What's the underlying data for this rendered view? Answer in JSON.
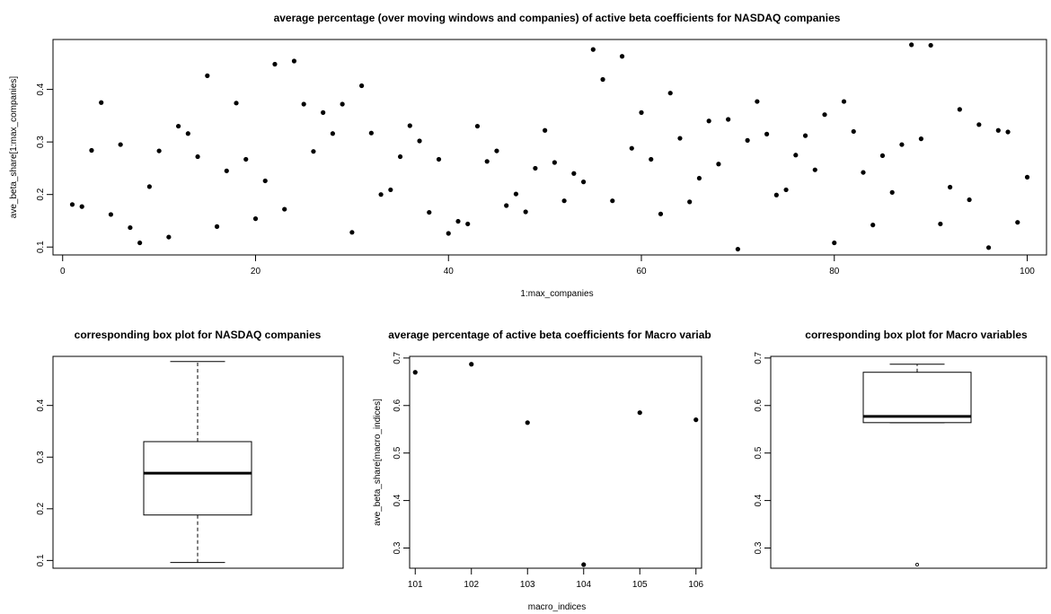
{
  "chart_data": [
    {
      "id": "nasdaq-scatter",
      "type": "scatter",
      "title": "average percentage (over moving windows and companies) of active beta coefficients for NASDAQ companies",
      "xlabel": "1:max_companies",
      "ylabel": "ave_beta_share[1:max_companies]",
      "xlim": [
        -1,
        102
      ],
      "ylim": [
        0.085,
        0.495
      ],
      "xticks": [
        0,
        20,
        40,
        60,
        80,
        100
      ],
      "yticks": [
        0.1,
        0.2,
        0.3,
        0.4
      ],
      "x": [
        1,
        2,
        3,
        4,
        5,
        6,
        7,
        8,
        9,
        10,
        11,
        12,
        13,
        14,
        15,
        16,
        17,
        18,
        19,
        20,
        21,
        22,
        23,
        24,
        25,
        26,
        27,
        28,
        29,
        30,
        31,
        32,
        33,
        34,
        35,
        36,
        37,
        38,
        39,
        40,
        41,
        42,
        43,
        44,
        45,
        46,
        47,
        48,
        49,
        50,
        51,
        52,
        53,
        54,
        55,
        56,
        57,
        58,
        59,
        60,
        61,
        62,
        63,
        64,
        65,
        66,
        67,
        68,
        69,
        70,
        71,
        72,
        73,
        74,
        75,
        76,
        77,
        78,
        79,
        80,
        81,
        82,
        83,
        84,
        85,
        86,
        87,
        88,
        89,
        90,
        91,
        92,
        93,
        94,
        95,
        96,
        97,
        98,
        99,
        100
      ],
      "y": [
        0.181,
        0.177,
        0.284,
        0.375,
        0.162,
        0.295,
        0.137,
        0.108,
        0.215,
        0.283,
        0.119,
        0.33,
        0.316,
        0.272,
        0.426,
        0.139,
        0.245,
        0.374,
        0.267,
        0.154,
        0.226,
        0.448,
        0.172,
        0.454,
        0.372,
        0.282,
        0.356,
        0.316,
        0.372,
        0.128,
        0.407,
        0.317,
        0.2,
        0.209,
        0.272,
        0.331,
        0.302,
        0.166,
        0.267,
        0.126,
        0.149,
        0.144,
        0.33,
        0.263,
        0.283,
        0.179,
        0.201,
        0.167,
        0.25,
        0.322,
        0.261,
        0.188,
        0.24,
        0.224,
        0.476,
        0.419,
        0.188,
        0.463,
        0.288,
        0.356,
        0.267,
        0.163,
        0.393,
        0.307,
        0.186,
        0.231,
        0.34,
        0.258,
        0.343,
        0.096,
        0.303,
        0.377,
        0.315,
        0.199,
        0.209,
        0.275,
        0.312,
        0.247,
        0.352,
        0.108,
        0.377,
        0.32,
        0.242,
        0.142,
        0.274,
        0.204,
        0.295,
        0.485,
        0.306,
        0.484,
        0.144,
        0.214,
        0.362,
        0.19,
        0.333,
        0.099,
        0.322,
        0.319,
        0.147,
        0.233
      ]
    },
    {
      "id": "nasdaq-box",
      "type": "box",
      "title": "corresponding box plot for NASDAQ companies",
      "ylim": [
        0.085,
        0.495
      ],
      "yticks": [
        0.1,
        0.2,
        0.3,
        0.4
      ],
      "min": 0.096,
      "q1": 0.188,
      "median": 0.269,
      "q3": 0.33,
      "max": 0.485,
      "outliers": []
    },
    {
      "id": "macro-scatter",
      "type": "scatter",
      "title": "average percentage of active beta coefficients for Macro variab",
      "xlabel": "macro_indices",
      "ylabel": "ave_beta_share[macro_indices]",
      "xlim": [
        100.9,
        106.1
      ],
      "ylim": [
        0.2575,
        0.7035
      ],
      "xticks": [
        101,
        102,
        103,
        104,
        105,
        106
      ],
      "yticks": [
        0.3,
        0.4,
        0.5,
        0.6,
        0.7
      ],
      "x": [
        101,
        102,
        103,
        104,
        105,
        106
      ],
      "y": [
        0.67,
        0.687,
        0.564,
        0.265,
        0.585,
        0.57
      ]
    },
    {
      "id": "macro-box",
      "type": "box",
      "title": "corresponding box plot for Macro variables",
      "ylim": [
        0.2575,
        0.7035
      ],
      "yticks": [
        0.3,
        0.4,
        0.5,
        0.6,
        0.7
      ],
      "min": 0.564,
      "q1": 0.564,
      "median": 0.577,
      "q3": 0.67,
      "max": 0.687,
      "outliers": [
        0.265
      ]
    }
  ]
}
